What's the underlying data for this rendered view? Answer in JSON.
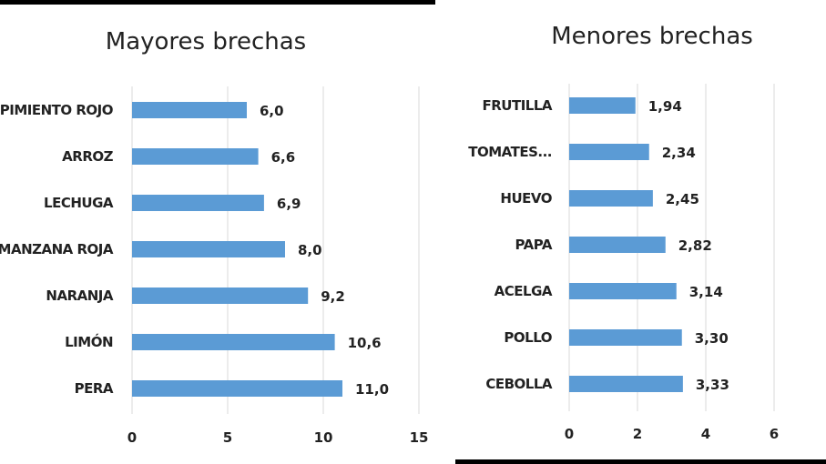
{
  "colors": {
    "bar": "#5b9bd5",
    "grid": "#d9d9d9",
    "text": "#222222",
    "rule": "#000000"
  },
  "chart_data": [
    {
      "type": "bar",
      "orientation": "horizontal",
      "title": "Mayores brechas",
      "categories": [
        "PERA",
        "LIMÓN",
        "NARANJA",
        "MANZANA ROJA",
        "LECHUGA",
        "ARROZ",
        "PIMIENTO ROJO"
      ],
      "values": [
        11.0,
        10.6,
        9.2,
        8.0,
        6.9,
        6.6,
        6.0
      ],
      "value_labels": [
        "11,0",
        "10,6",
        "9,2",
        "8,0",
        "6,9",
        "6,6",
        "6,0"
      ],
      "xlim": [
        0,
        15
      ],
      "xticks": [
        0,
        5,
        10,
        15
      ],
      "xtick_labels": [
        "0",
        "5",
        "10",
        "15"
      ],
      "grid": true
    },
    {
      "type": "bar",
      "orientation": "horizontal",
      "title": "Menores brechas",
      "categories": [
        "CEBOLLA",
        "POLLO",
        "ACELGA",
        "PAPA",
        "HUEVO",
        "TOMATES...",
        "FRUTILLA"
      ],
      "values": [
        3.33,
        3.3,
        3.14,
        2.82,
        2.45,
        2.34,
        1.94
      ],
      "value_labels": [
        "3,33",
        "3,30",
        "3,14",
        "2,82",
        "2,45",
        "2,34",
        "1,94"
      ],
      "xlim": [
        0,
        6
      ],
      "xticks": [
        0,
        2,
        4,
        6
      ],
      "xtick_labels": [
        "0",
        "2",
        "4",
        "6"
      ],
      "grid": true
    }
  ]
}
